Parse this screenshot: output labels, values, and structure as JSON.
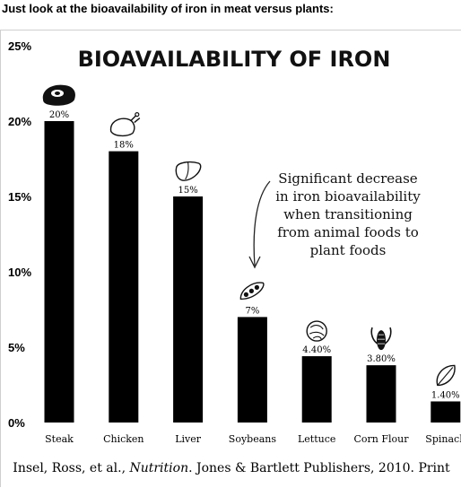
{
  "heading": "Just look at the bioavailability of iron in meat versus plants:",
  "chart_data": {
    "type": "bar",
    "title": "BIOAVAILABILITY OF IRON",
    "categories": [
      "Steak",
      "Chicken",
      "Liver",
      "Soybeans",
      "Lettuce",
      "Corn Flour",
      "Spinach"
    ],
    "values": [
      20,
      18,
      15,
      7,
      4.4,
      3.8,
      1.4
    ],
    "data_labels": [
      "20%",
      "18%",
      "15%",
      "7%",
      "4.40%",
      "3.80%",
      "1.40%"
    ],
    "icons": [
      "steak-icon",
      "chicken-icon",
      "liver-icon",
      "soybean-icon",
      "lettuce-icon",
      "corn-icon",
      "spinach-leaf-icon"
    ],
    "ylim": [
      0,
      25
    ],
    "yticks": [
      0,
      5,
      10,
      15,
      20,
      25
    ],
    "ytick_labels": [
      "0%",
      "5%",
      "10%",
      "15%",
      "20%",
      "25%"
    ],
    "xlabel": "",
    "ylabel": "",
    "grid": false,
    "bar_color": "#000000",
    "annotation": [
      "Significant decrease",
      "in iron bioavailability",
      "when transitioning",
      "from animal foods to",
      "plant foods"
    ],
    "source": {
      "before": "Insel, Ross, et al., ",
      "italic": "Nutrition",
      "after": ". Jones & Bartlett Publishers, 2010. Print"
    }
  }
}
